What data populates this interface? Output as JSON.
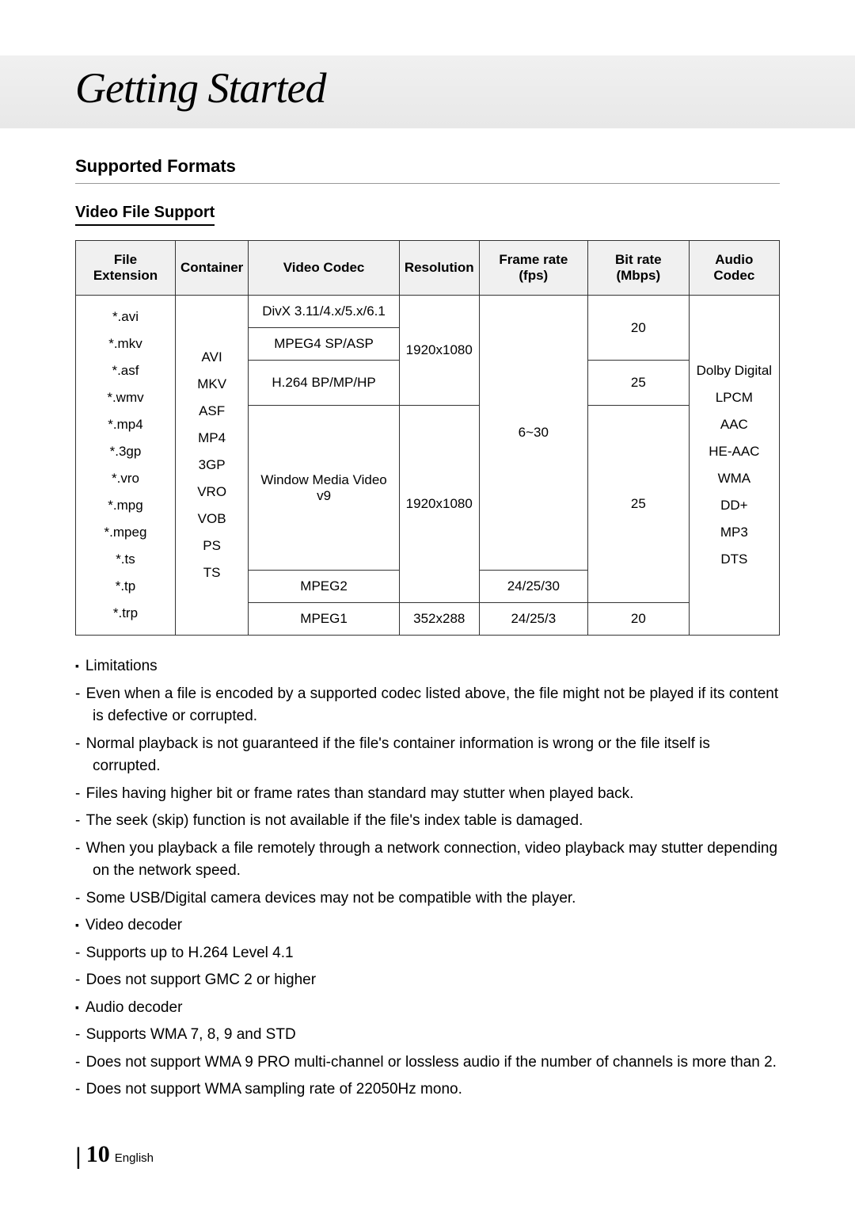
{
  "page": {
    "mainTitle": "Getting Started",
    "sectionHeading": "Supported Formats",
    "subsectionHeading": "Video File Support",
    "pageNumber": "10",
    "language": "English"
  },
  "table": {
    "headers": {
      "fileExtension": "File Extension",
      "container": "Container",
      "videoCodec": "Video Codec",
      "resolution": "Resolution",
      "frameRate": "Frame rate (fps)",
      "bitRate": "Bit rate (Mbps)",
      "audioCodec": "Audio Codec"
    },
    "fileExtensions": "*.avi\n*.mkv\n*.asf\n*.wmv\n*.mp4\n*.3gp\n*.vro\n*.mpg\n*.mpeg\n*.ts\n*.tp\n*.trp",
    "container": "AVI\nMKV\nASF\nMP4\n3GP\nVRO\nVOB\nPS\nTS",
    "videoCodecs": {
      "r1": "DivX 3.11/4.x/5.x/6.1",
      "r2": "MPEG4 SP/ASP",
      "r3": "H.264 BP/MP/HP",
      "r4": "Window Media Video v9",
      "r5": "MPEG2",
      "r6": "MPEG1"
    },
    "resolutions": {
      "res1": "1920x1080",
      "res2": "1920x1080",
      "res3": "352x288"
    },
    "frameRates": {
      "fr1": "6~30",
      "fr2": "24/25/30",
      "fr3": "24/25/3"
    },
    "bitRates": {
      "br1": "20",
      "br2": "25",
      "br3": "25",
      "br4": "20"
    },
    "audioCodec": "Dolby Digital\nLPCM\nAAC\nHE-AAC\nWMA\nDD+\nMP3\nDTS",
    "colors": {
      "headerBg": "#f0f0f0",
      "borderColor": "#333333",
      "textColor": "#000000"
    }
  },
  "notes": {
    "limitations": {
      "head": "Limitations",
      "items": [
        "Even when a file is encoded by a supported codec listed above, the file might not be played if its content is defective or corrupted.",
        "Normal playback is not guaranteed if the file's container information is wrong or the file itself is corrupted.",
        "Files having higher bit or frame rates than standard may stutter when played back.",
        "The seek (skip) function is not available if the file's index table is damaged.",
        "When you playback a file remotely through a network connection, video playback may stutter depending on the network speed.",
        "Some USB/Digital camera devices may not be compatible with the player."
      ]
    },
    "videoDecoder": {
      "head": "Video decoder",
      "items": [
        "Supports up to H.264 Level 4.1",
        "Does not support GMC 2 or higher"
      ]
    },
    "audioDecoder": {
      "head": "Audio decoder",
      "items": [
        "Supports WMA 7, 8, 9 and STD",
        "Does not support WMA 9 PRO multi-channel or lossless audio if the number of channels is more than 2.",
        "Does not support WMA sampling rate of 22050Hz mono."
      ]
    }
  }
}
